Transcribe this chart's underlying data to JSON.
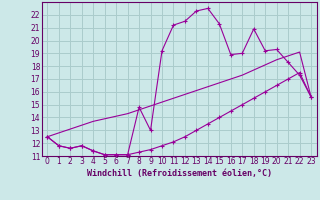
{
  "xlabel": "Windchill (Refroidissement éolien,°C)",
  "bg_color": "#cce8e8",
  "grid_color": "#aacccc",
  "line_color": "#990099",
  "x_values": [
    0,
    1,
    2,
    3,
    4,
    5,
    6,
    7,
    8,
    9,
    10,
    11,
    12,
    13,
    14,
    15,
    16,
    17,
    18,
    19,
    20,
    21,
    22,
    23
  ],
  "y_jagged": [
    12.5,
    11.8,
    11.6,
    11.8,
    11.4,
    11.1,
    11.1,
    11.1,
    14.8,
    13.0,
    19.2,
    21.2,
    21.5,
    22.3,
    22.5,
    21.3,
    18.9,
    19.0,
    20.9,
    19.2,
    19.3,
    18.3,
    17.3,
    15.6
  ],
  "y_lower": [
    12.5,
    11.8,
    11.6,
    11.8,
    11.4,
    11.1,
    11.1,
    11.1,
    11.3,
    11.5,
    11.8,
    12.1,
    12.5,
    13.0,
    13.5,
    14.0,
    14.5,
    15.0,
    15.5,
    16.0,
    16.5,
    17.0,
    17.5,
    15.6
  ],
  "y_linear": [
    12.5,
    12.8,
    13.1,
    13.4,
    13.7,
    13.9,
    14.1,
    14.3,
    14.6,
    14.9,
    15.2,
    15.5,
    15.8,
    16.1,
    16.4,
    16.7,
    17.0,
    17.3,
    17.7,
    18.1,
    18.5,
    18.8,
    19.1,
    15.6
  ],
  "ylim": [
    11,
    23
  ],
  "xlim": [
    -0.5,
    23.5
  ],
  "yticks": [
    11,
    12,
    13,
    14,
    15,
    16,
    17,
    18,
    19,
    20,
    21,
    22
  ],
  "xticks": [
    0,
    1,
    2,
    3,
    4,
    5,
    6,
    7,
    8,
    9,
    10,
    11,
    12,
    13,
    14,
    15,
    16,
    17,
    18,
    19,
    20,
    21,
    22,
    23
  ],
  "font_color": "#660066",
  "tick_fontsize": 5.5,
  "label_fontsize": 6.0
}
